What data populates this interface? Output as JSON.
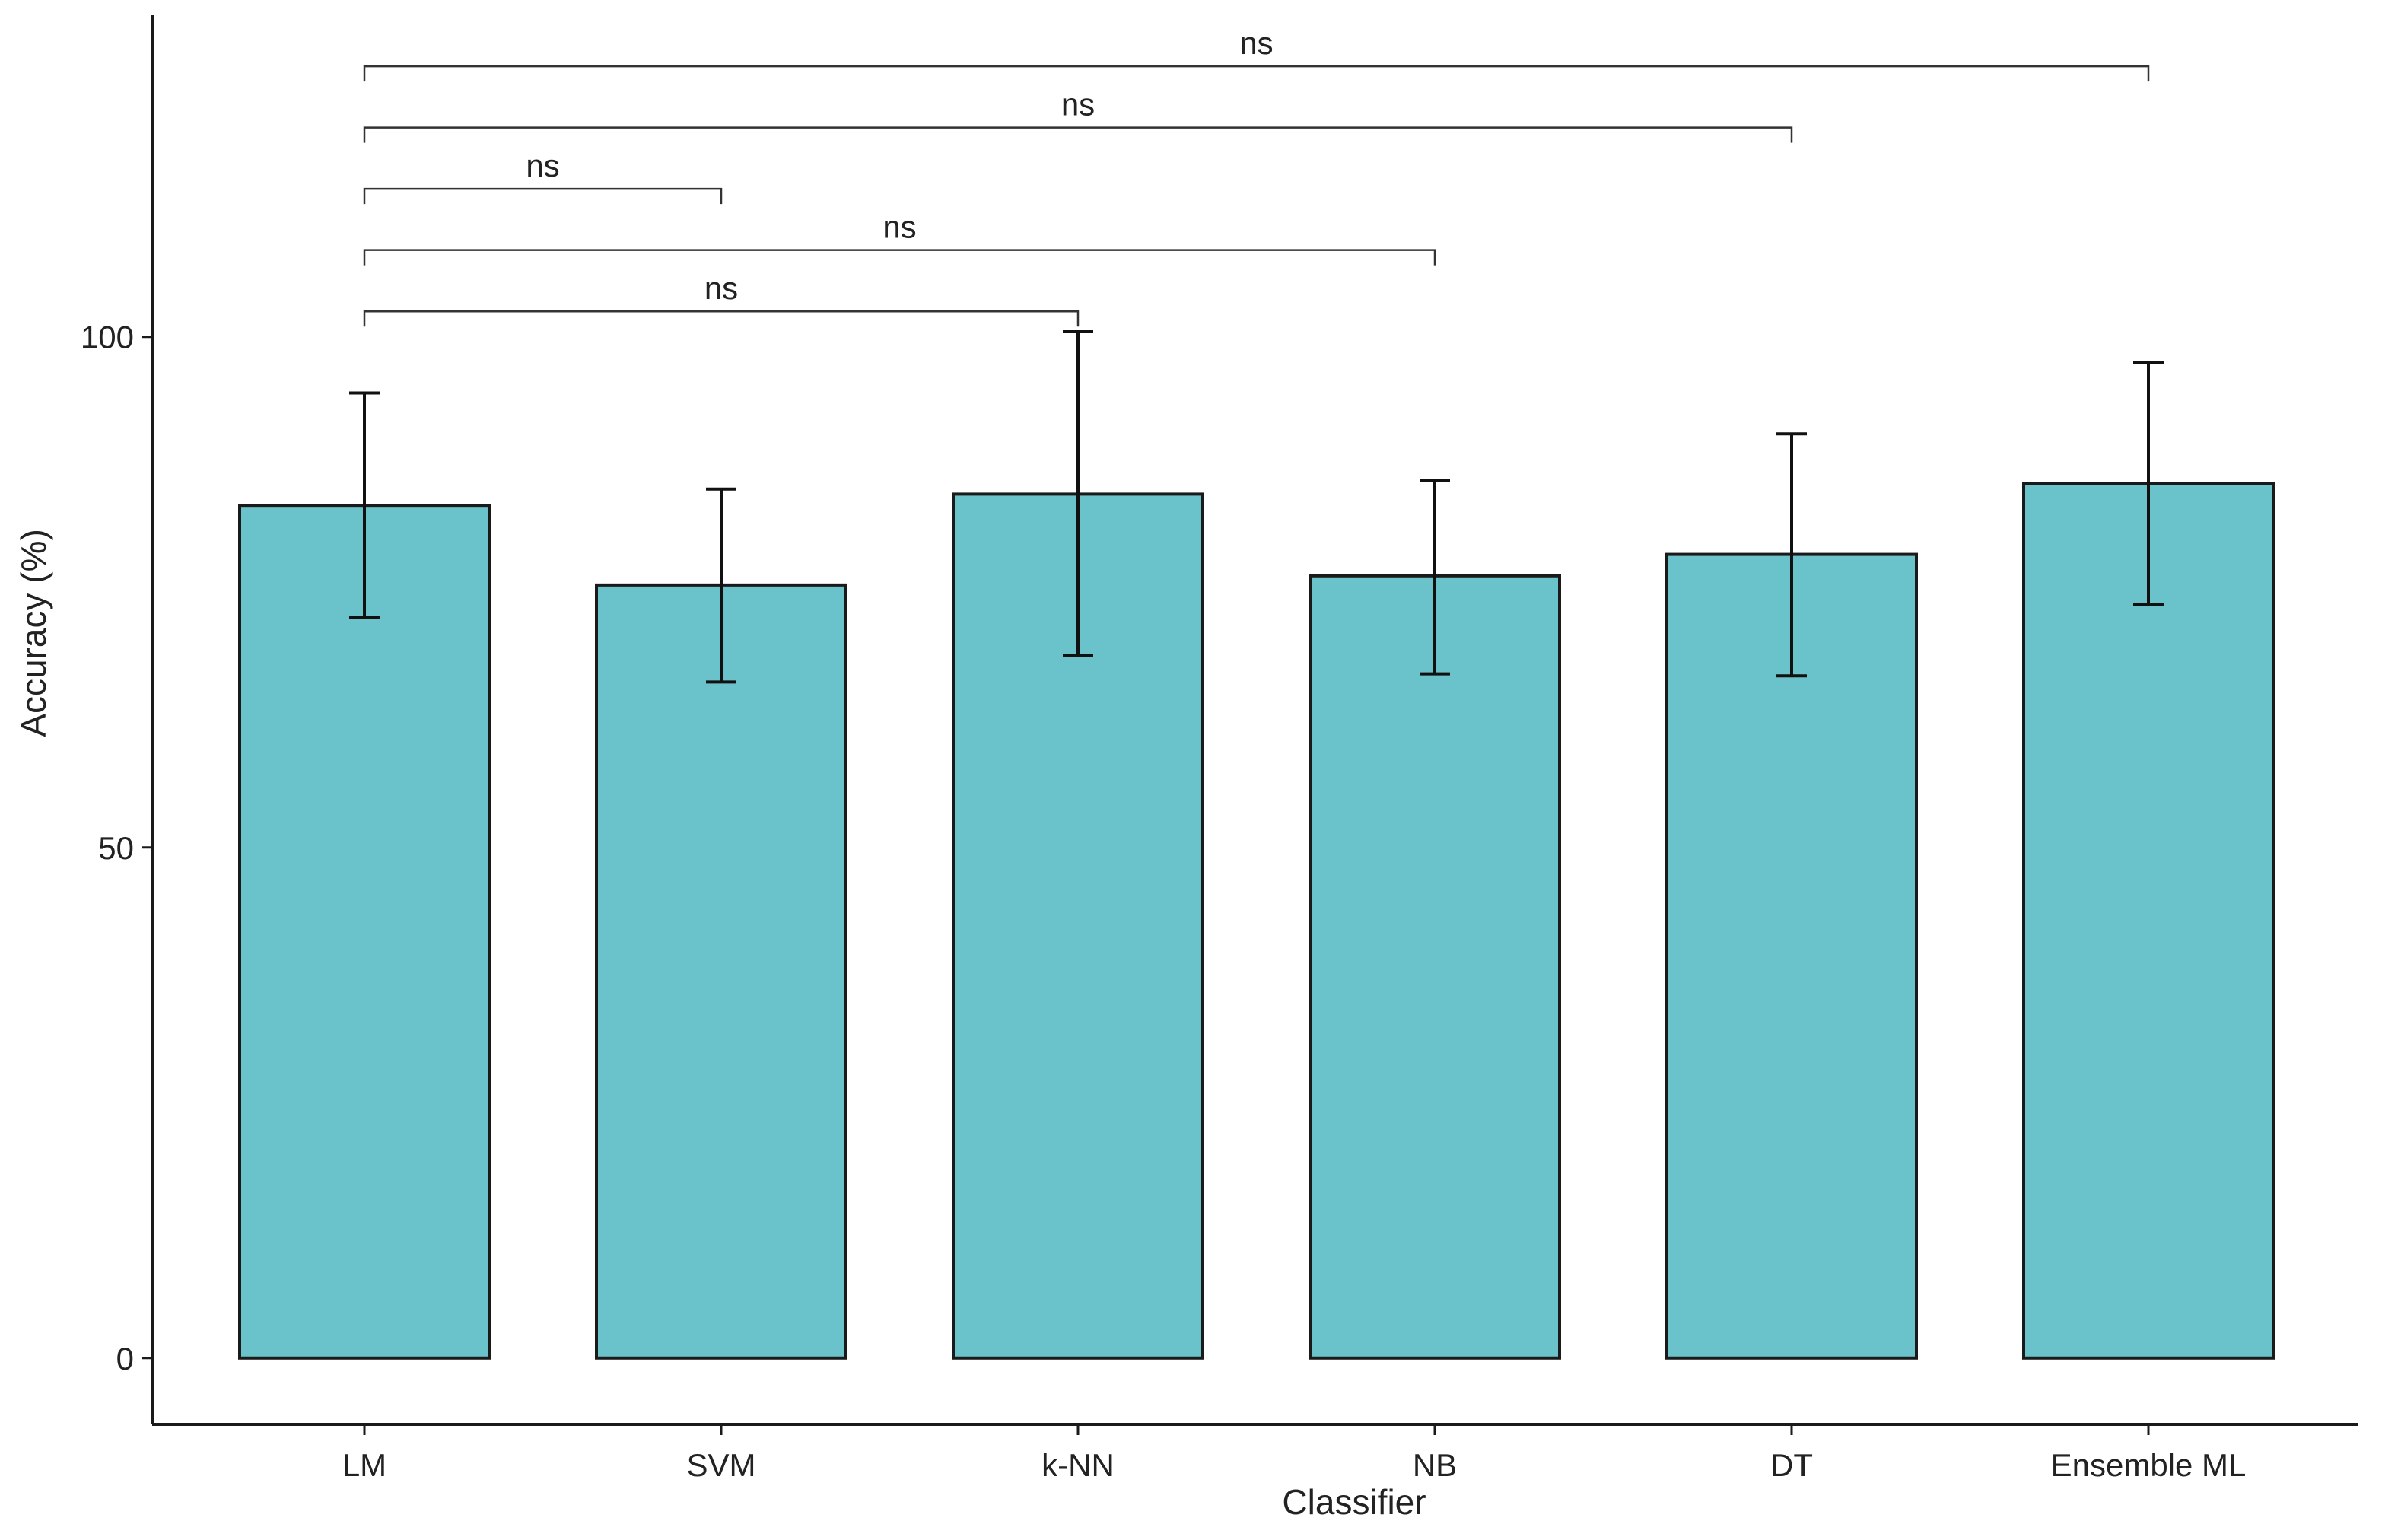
{
  "chart_data": {
    "type": "bar",
    "title": "",
    "xlabel": "Classifier",
    "ylabel": "Accuracy (%)",
    "ylim": [
      -6.5,
      131.5
    ],
    "yticks": [
      0,
      50,
      100
    ],
    "ytick_labels": [
      "0",
      "50",
      "100"
    ],
    "grid": false,
    "bar_color": "#6AC3CB",
    "categories": [
      "LM",
      "SVM",
      "k-NN",
      "NB",
      "DT",
      "Ensemble ML"
    ],
    "values": [
      83.5,
      75.7,
      84.6,
      76.6,
      78.7,
      85.6
    ],
    "error_low": [
      72.5,
      66.2,
      68.8,
      67.0,
      66.8,
      73.8
    ],
    "error_high": [
      94.5,
      85.1,
      100.5,
      85.9,
      90.5,
      97.5
    ],
    "comparisons": [
      {
        "from": "LM",
        "to": "k-NN",
        "label": "ns",
        "y": 102.5
      },
      {
        "from": "LM",
        "to": "NB",
        "label": "ns",
        "y": 108.5
      },
      {
        "from": "LM",
        "to": "SVM",
        "label": "ns",
        "y": 114.5
      },
      {
        "from": "LM",
        "to": "DT",
        "label": "ns",
        "y": 120.5
      },
      {
        "from": "LM",
        "to": "Ensemble ML",
        "label": "ns",
        "y": 126.5
      }
    ]
  }
}
